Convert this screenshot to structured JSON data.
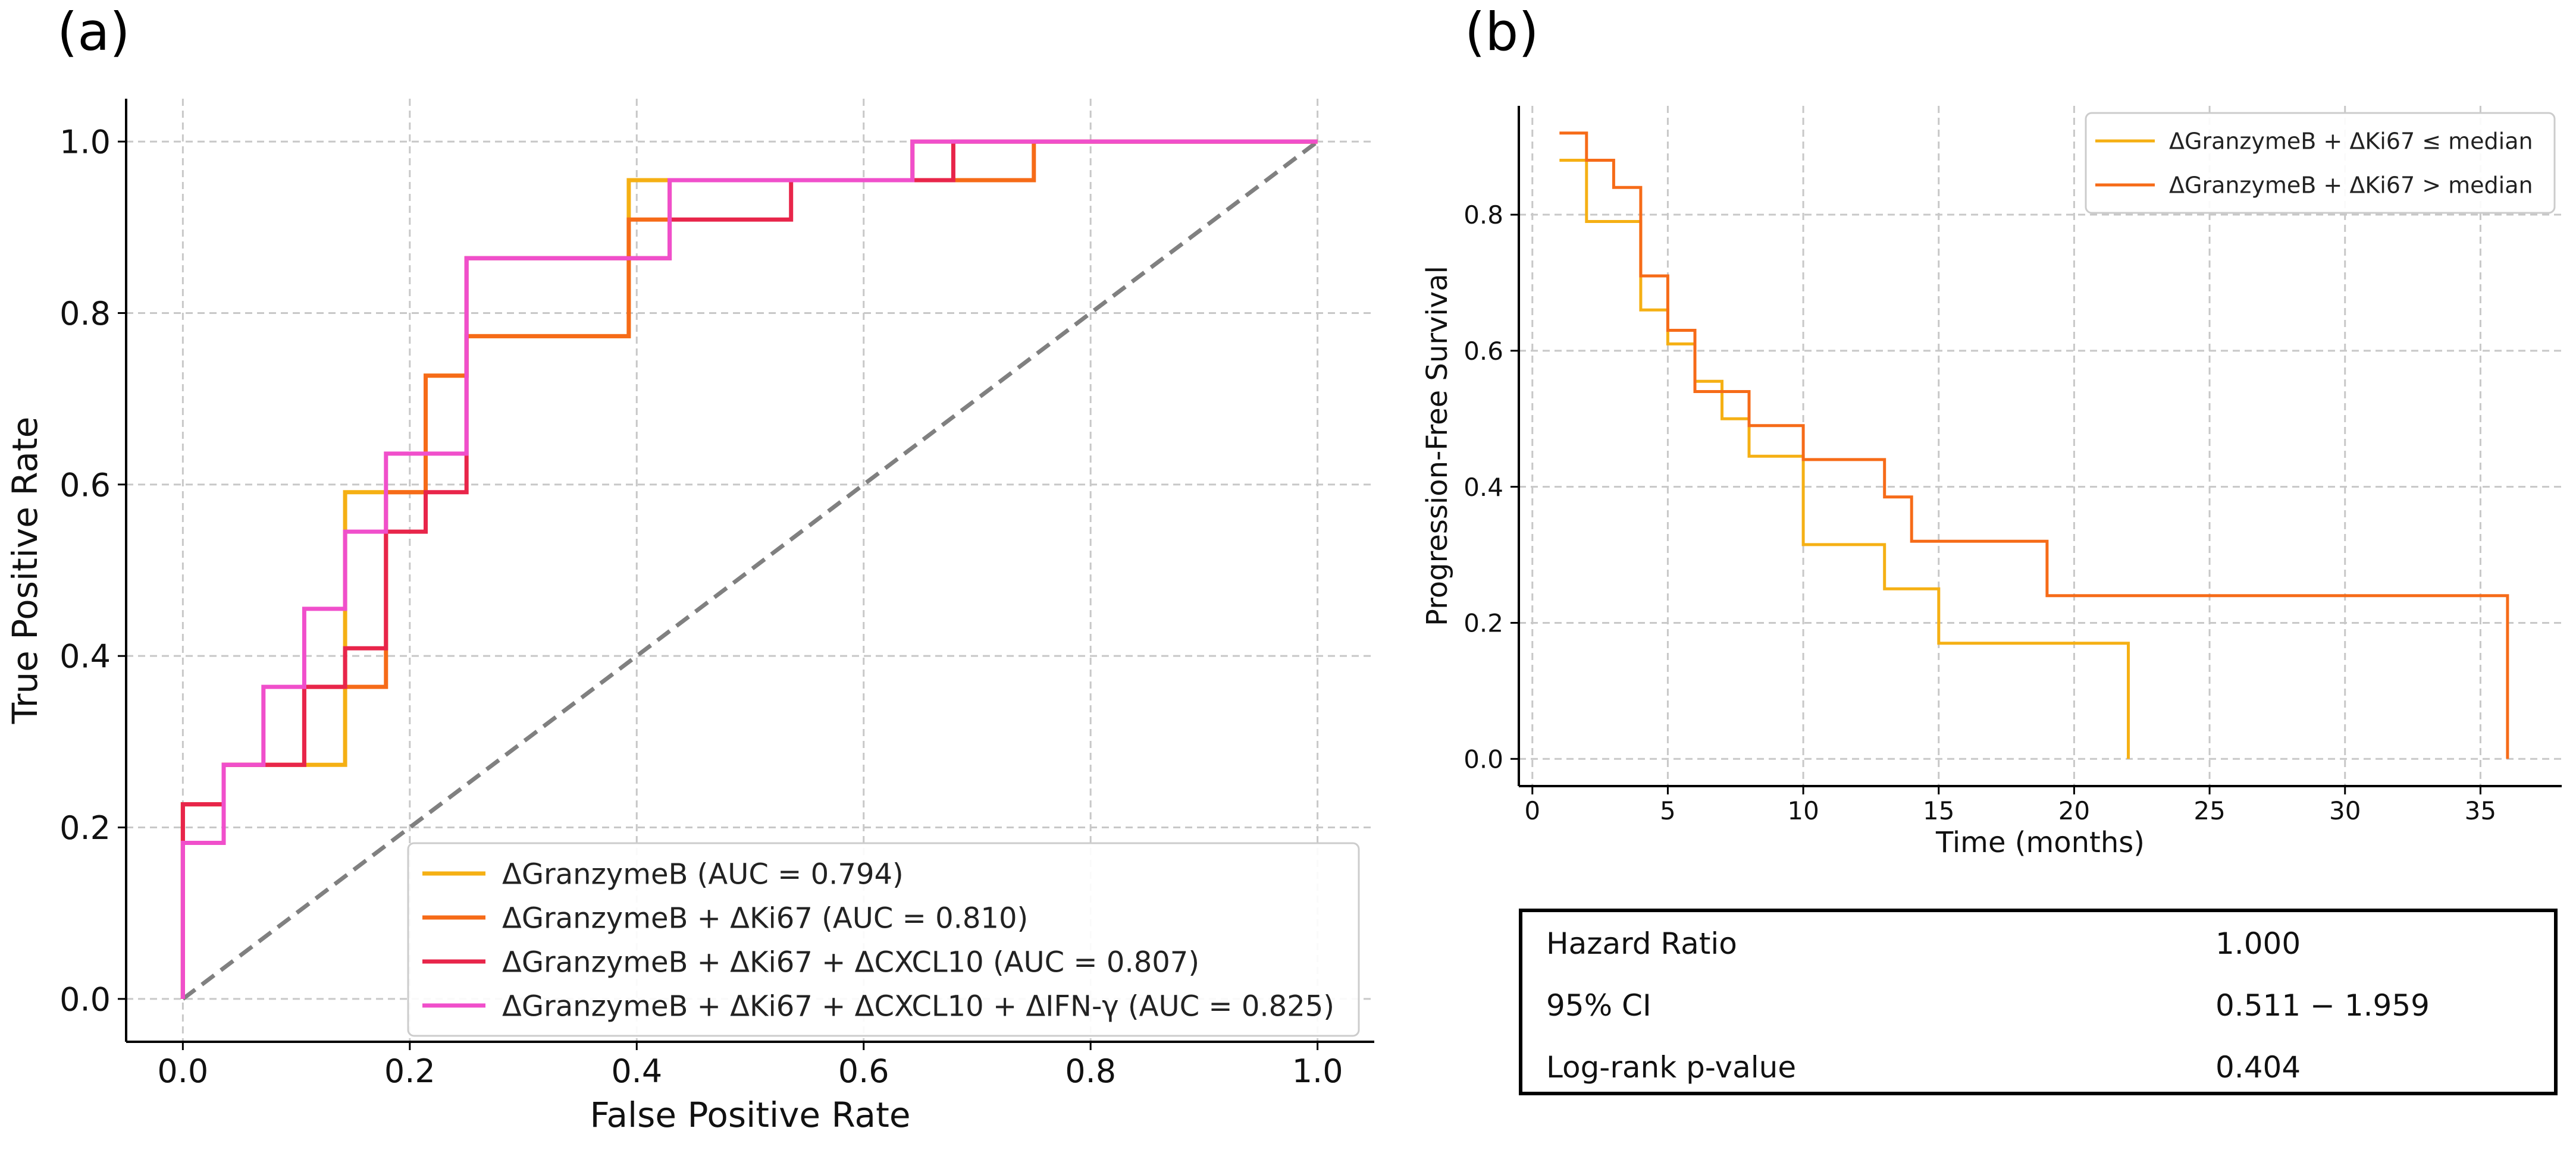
{
  "panel_labels": {
    "a": "(a)",
    "b": "(b)"
  },
  "colors": {
    "granzymeb": "#F5B014",
    "granzymeb_ki67": "#F66B18",
    "granzymeb_ki67_cxcl10": "#E8254A",
    "granzymeb_ki67_cxcl10_ifng": "#F04FCB",
    "km_low": "#F5B014",
    "km_high": "#F66B18",
    "diagonal": "#808080",
    "grid": "#c8c8c8"
  },
  "chart_data": [
    {
      "type": "line",
      "title": "",
      "xlabel": "False Positive Rate",
      "ylabel": "True Positive Rate",
      "xlim": [
        -0.05,
        1.05
      ],
      "ylim": [
        -0.05,
        1.05
      ],
      "xticks": [
        "0.0",
        "0.2",
        "0.4",
        "0.6",
        "0.8",
        "1.0"
      ],
      "yticks": [
        "0.0",
        "0.2",
        "0.4",
        "0.6",
        "0.8",
        "1.0"
      ],
      "grid": true,
      "legend_position": "bottom-right",
      "diagonal": [
        [
          0,
          0
        ],
        [
          1,
          1
        ]
      ],
      "series": [
        {
          "name": "ΔGranzymeB (AUC = 0.794)",
          "color_key": "granzymeb",
          "points": [
            [
              0,
              0
            ],
            [
              0,
              0.227
            ],
            [
              0.036,
              0.227
            ],
            [
              0.036,
              0.273
            ],
            [
              0.143,
              0.273
            ],
            [
              0.143,
              0.591
            ],
            [
              0.214,
              0.591
            ],
            [
              0.214,
              0.727
            ],
            [
              0.25,
              0.727
            ],
            [
              0.25,
              0.773
            ],
            [
              0.393,
              0.773
            ],
            [
              0.393,
              0.955
            ],
            [
              0.643,
              0.955
            ],
            [
              0.643,
              1.0
            ],
            [
              1.0,
              1.0
            ]
          ]
        },
        {
          "name": "ΔGranzymeB + ΔKi67 (AUC = 0.810)",
          "color_key": "granzymeb_ki67",
          "points": [
            [
              0,
              0
            ],
            [
              0,
              0.227
            ],
            [
              0.036,
              0.227
            ],
            [
              0.036,
              0.273
            ],
            [
              0.107,
              0.273
            ],
            [
              0.107,
              0.364
            ],
            [
              0.179,
              0.364
            ],
            [
              0.179,
              0.591
            ],
            [
              0.214,
              0.591
            ],
            [
              0.214,
              0.727
            ],
            [
              0.25,
              0.727
            ],
            [
              0.25,
              0.773
            ],
            [
              0.393,
              0.773
            ],
            [
              0.393,
              0.909
            ],
            [
              0.429,
              0.909
            ],
            [
              0.429,
              0.955
            ],
            [
              0.75,
              0.955
            ],
            [
              0.75,
              1.0
            ],
            [
              1.0,
              1.0
            ]
          ]
        },
        {
          "name": "ΔGranzymeB + ΔKi67 + ΔCXCL10 (AUC = 0.807)",
          "color_key": "granzymeb_ki67_cxcl10",
          "points": [
            [
              0,
              0
            ],
            [
              0,
              0.227
            ],
            [
              0.036,
              0.227
            ],
            [
              0.036,
              0.273
            ],
            [
              0.107,
              0.273
            ],
            [
              0.107,
              0.364
            ],
            [
              0.143,
              0.364
            ],
            [
              0.143,
              0.409
            ],
            [
              0.179,
              0.409
            ],
            [
              0.179,
              0.545
            ],
            [
              0.214,
              0.545
            ],
            [
              0.214,
              0.591
            ],
            [
              0.25,
              0.591
            ],
            [
              0.25,
              0.864
            ],
            [
              0.429,
              0.864
            ],
            [
              0.429,
              0.909
            ],
            [
              0.536,
              0.909
            ],
            [
              0.536,
              0.955
            ],
            [
              0.679,
              0.955
            ],
            [
              0.679,
              1.0
            ],
            [
              1.0,
              1.0
            ]
          ]
        },
        {
          "name": "ΔGranzymeB + ΔKi67 + ΔCXCL10 + ΔIFN-γ (AUC = 0.825)",
          "color_key": "granzymeb_ki67_cxcl10_ifng",
          "points": [
            [
              0,
              0
            ],
            [
              0,
              0.182
            ],
            [
              0.036,
              0.182
            ],
            [
              0.036,
              0.273
            ],
            [
              0.071,
              0.273
            ],
            [
              0.071,
              0.364
            ],
            [
              0.107,
              0.364
            ],
            [
              0.107,
              0.455
            ],
            [
              0.143,
              0.455
            ],
            [
              0.143,
              0.545
            ],
            [
              0.179,
              0.545
            ],
            [
              0.179,
              0.636
            ],
            [
              0.25,
              0.636
            ],
            [
              0.25,
              0.864
            ],
            [
              0.429,
              0.864
            ],
            [
              0.429,
              0.955
            ],
            [
              0.643,
              0.955
            ],
            [
              0.643,
              1.0
            ],
            [
              1.0,
              1.0
            ]
          ]
        }
      ]
    },
    {
      "type": "line",
      "title": "",
      "xlabel": "Time (months)",
      "ylabel": "Progression-Free Survival",
      "xlim": [
        -0.5,
        38
      ],
      "ylim": [
        -0.04,
        0.96
      ],
      "xticks": [
        "0",
        "5",
        "10",
        "15",
        "20",
        "25",
        "30",
        "35"
      ],
      "yticks": [
        "0.0",
        "0.2",
        "0.4",
        "0.6",
        "0.8"
      ],
      "grid": true,
      "legend_position": "top-right",
      "series": [
        {
          "name": "ΔGranzymeB + ΔKi67 ≤ median",
          "color_key": "km_low",
          "points": [
            [
              1,
              0.88
            ],
            [
              2,
              0.88
            ],
            [
              2,
              0.79
            ],
            [
              4,
              0.79
            ],
            [
              4,
              0.66
            ],
            [
              5,
              0.66
            ],
            [
              5,
              0.61
            ],
            [
              6,
              0.61
            ],
            [
              6,
              0.555
            ],
            [
              7,
              0.555
            ],
            [
              7,
              0.5
            ],
            [
              8,
              0.5
            ],
            [
              8,
              0.445
            ],
            [
              10,
              0.445
            ],
            [
              10,
              0.315
            ],
            [
              13,
              0.315
            ],
            [
              13,
              0.25
            ],
            [
              15,
              0.25
            ],
            [
              15,
              0.17
            ],
            [
              22,
              0.17
            ],
            [
              22,
              0.0
            ]
          ]
        },
        {
          "name": "ΔGranzymeB + ΔKi67 > median",
          "color_key": "km_high",
          "points": [
            [
              1,
              0.92
            ],
            [
              2,
              0.92
            ],
            [
              2,
              0.88
            ],
            [
              3,
              0.88
            ],
            [
              3,
              0.84
            ],
            [
              4,
              0.84
            ],
            [
              4,
              0.71
            ],
            [
              5,
              0.71
            ],
            [
              5,
              0.63
            ],
            [
              6,
              0.63
            ],
            [
              6,
              0.54
            ],
            [
              8,
              0.54
            ],
            [
              8,
              0.49
            ],
            [
              10,
              0.49
            ],
            [
              10,
              0.44
            ],
            [
              13,
              0.44
            ],
            [
              13,
              0.385
            ],
            [
              14,
              0.385
            ],
            [
              14,
              0.32
            ],
            [
              19,
              0.32
            ],
            [
              19,
              0.24
            ],
            [
              36,
              0.24
            ],
            [
              36,
              0.0
            ]
          ]
        }
      ]
    }
  ],
  "stats_table": {
    "rows": [
      {
        "label": "Hazard Ratio",
        "value": "1.000"
      },
      {
        "label": "95% CI",
        "value": "0.511 − 1.959"
      },
      {
        "label": "Log-rank p-value",
        "value": "0.404"
      }
    ]
  }
}
